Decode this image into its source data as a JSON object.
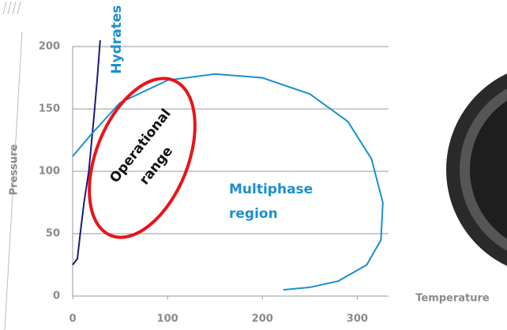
{
  "chart_data": {
    "type": "line",
    "x_label": "Temperature",
    "y_label": "Pressure",
    "xlim": [
      0,
      333
    ],
    "ylim": [
      0,
      210
    ],
    "xticks": [
      0,
      100,
      200,
      300
    ],
    "yticks": [
      0,
      50,
      100,
      150,
      200
    ],
    "grid": true,
    "series": [
      {
        "color": "#1a1a7a",
        "x": [
          0,
          5,
          8,
          12,
          17,
          22,
          26,
          29
        ],
        "y": [
          25,
          30,
          50,
          75,
          100,
          140,
          175,
          205
        ]
      },
      {
        "color": "#1a8fd0",
        "x": [
          0,
          20,
          50,
          100,
          150,
          200,
          250,
          290,
          315,
          327,
          325,
          310,
          280,
          250,
          222
        ],
        "y": [
          112,
          130,
          155,
          173,
          178,
          175,
          162,
          140,
          110,
          75,
          45,
          25,
          12,
          7,
          5
        ]
      }
    ],
    "annotations": [
      "Hydrates",
      "Operational",
      "range",
      "Multiphase",
      "region"
    ]
  }
}
